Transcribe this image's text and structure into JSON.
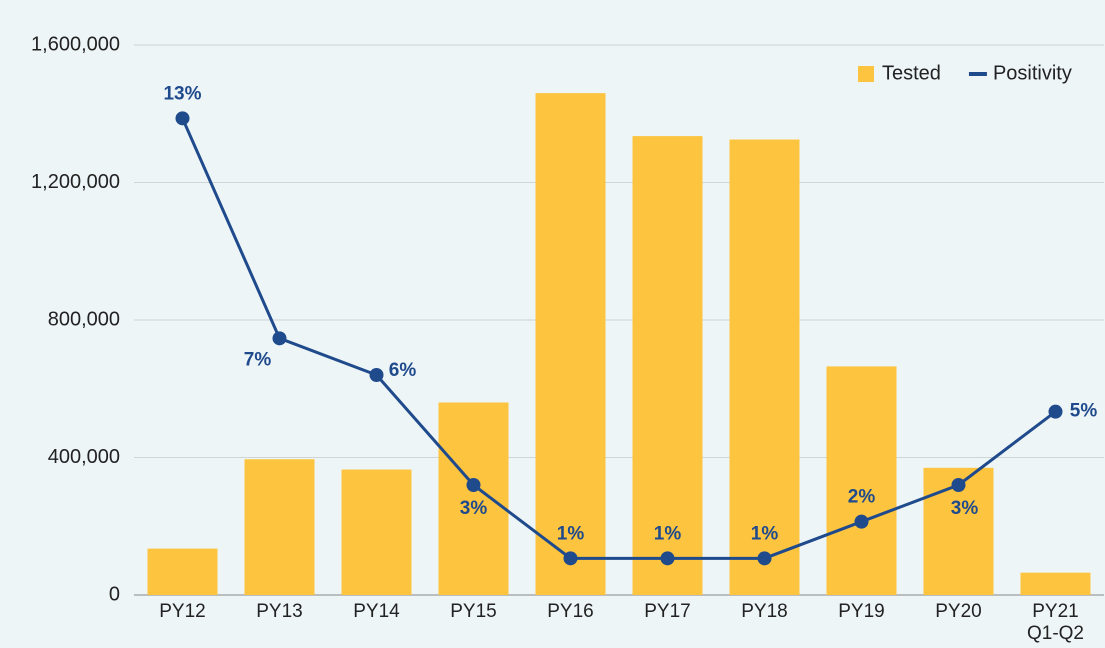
{
  "chart_data": {
    "type": "bar-line",
    "categories": [
      "PY12",
      "PY13",
      "PY14",
      "PY15",
      "PY16",
      "PY17",
      "PY18",
      "PY19",
      "PY20",
      "PY21 Q1-Q2"
    ],
    "series": [
      {
        "name": "Tested",
        "type": "bar",
        "color": "#fdc53f",
        "values": [
          135000,
          395000,
          365000,
          560000,
          1460000,
          1335000,
          1325000,
          665000,
          370000,
          65000
        ]
      },
      {
        "name": "Positivity",
        "type": "line",
        "axis": "y2",
        "color": "#1f4a8c",
        "values": [
          13,
          7,
          6,
          3,
          1,
          1,
          1,
          2,
          3,
          5
        ],
        "value_labels": [
          "13%",
          "7%",
          "6%",
          "3%",
          "1%",
          "1%",
          "1%",
          "2%",
          "3%",
          "5%"
        ]
      }
    ],
    "ylim": [
      0,
      1600000
    ],
    "yticks": [
      0,
      {
        "value": 400000,
        "label": "400,000"
      },
      {
        "value": 800000,
        "label": "800,000"
      },
      {
        "value": 1200000,
        "label": "1,200,000"
      },
      {
        "value": 1600000,
        "label": "1,600,000"
      }
    ],
    "y2lim": [
      0,
      15
    ],
    "grid": true,
    "legend": "upper right"
  }
}
